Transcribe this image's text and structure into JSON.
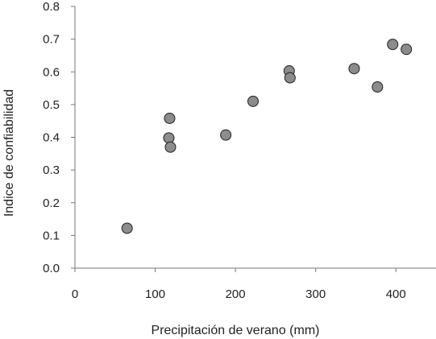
{
  "chart_data": {
    "type": "scatter",
    "title": "",
    "xlabel": "Precipitación de verano (mm)",
    "ylabel": "Indice de confiabilidad",
    "xlim": [
      0,
      450
    ],
    "ylim": [
      0.0,
      0.8
    ],
    "x_ticks": [
      "0",
      "100",
      "200",
      "300",
      "400"
    ],
    "y_ticks": [
      "0.0",
      "0.1",
      "0.2",
      "0.3",
      "0.4",
      "0.5",
      "0.6",
      "0.7",
      "0.8"
    ],
    "grid": false,
    "legend": "none",
    "marker_color": "#8c8c8c",
    "series": [
      {
        "points": [
          [
            65,
            0.122
          ],
          [
            117,
            0.398
          ],
          [
            118,
            0.458
          ],
          [
            119,
            0.37
          ],
          [
            188,
            0.407
          ],
          [
            222,
            0.51
          ],
          [
            267,
            0.603
          ],
          [
            268,
            0.582
          ],
          [
            348,
            0.61
          ],
          [
            377,
            0.554
          ],
          [
            396,
            0.684
          ],
          [
            413,
            0.669
          ]
        ]
      }
    ]
  }
}
